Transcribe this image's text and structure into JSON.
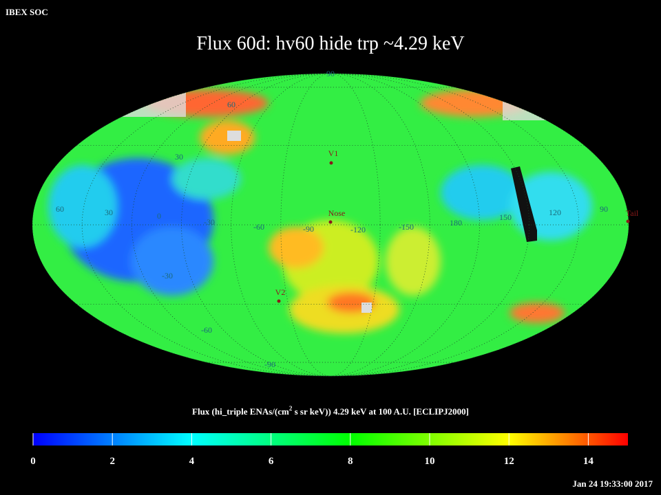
{
  "header": {
    "corner": "IBEX SOC",
    "title": "Flux   60d: hv60 hide trp ~4.29 keV"
  },
  "map": {
    "grid_labels": [
      "90",
      "60",
      "30",
      "-30",
      "-60",
      "-90",
      "60",
      "30",
      "0",
      "-30",
      "-60",
      "-90",
      "-120",
      "-150",
      "180",
      "150",
      "120",
      "90"
    ],
    "markers": [
      "V1",
      "Nose",
      "V2",
      "Tail"
    ]
  },
  "colorbar": {
    "label": [
      "Flux (hi_triple ENAs/(cm",
      "2",
      " s sr keV))  4.29 keV at 100 A.U. [ECLIPJ2000]"
    ],
    "lim": [
      0,
      15
    ],
    "ticks": [
      0,
      2,
      4,
      6,
      8,
      10,
      12,
      14
    ]
  },
  "footer": {
    "timestamp": "Jan 24 19:33:00 2017"
  }
}
